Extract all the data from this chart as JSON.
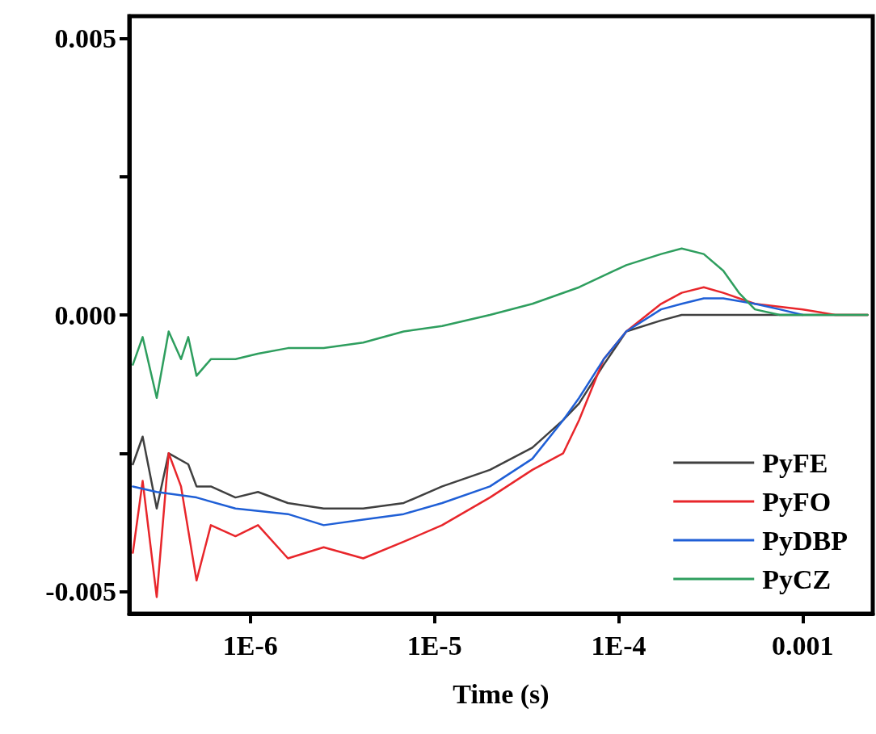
{
  "chart_data": {
    "type": "line",
    "xlabel": "Time (s)",
    "log": "x",
    "grid": false,
    "legend": "bottom right",
    "marker": "none",
    "line_style": "solid",
    "xlim": [
      2.2e-07,
      0.0024
    ],
    "xticks": [
      {
        "value": 1e-06,
        "label": "1E-6"
      },
      {
        "value": 1e-05,
        "label": "1E-5"
      },
      {
        "value": 0.0001,
        "label": "1E-4"
      },
      0.001
    ],
    "ylim": [
      -0.0054,
      0.0054
    ],
    "yticks": [
      {
        "value": -0.005,
        "label": "-0.005"
      },
      {
        "value": -0.0025,
        "label": null
      },
      {
        "value": 0,
        "label": "0.000"
      },
      {
        "value": 0.0025,
        "label": null
      },
      0.005
    ],
    "series": [
      {
        "name": "PyFE",
        "color": "#404040",
        "x": [
          2.3e-07,
          2.6e-07,
          3.1e-07,
          3.6e-07,
          4.6e-07,
          5.1e-07,
          6.1e-07,
          8.3e-07,
          1.1e-06,
          1.6e-06,
          2.5e-06,
          4.1e-06,
          6.8e-06,
          1.1e-05,
          2e-05,
          3.4e-05,
          5e-05,
          6.1e-05,
          8.3e-05,
          0.00011,
          0.00017,
          0.00022,
          0.00029,
          0.00037,
          0.00055,
          0.001,
          0.00225
        ],
        "values": [
          -0.0027,
          -0.0022,
          -0.0035,
          -0.0025,
          -0.0027,
          -0.0031,
          -0.0031,
          -0.0033,
          -0.0032,
          -0.0034,
          -0.0035,
          -0.0035,
          -0.0034,
          -0.0031,
          -0.0028,
          -0.0024,
          -0.0019,
          -0.0016,
          -0.0009,
          -0.0003,
          -0.0001,
          0.0,
          0.0,
          0.0,
          0.0,
          0.0,
          0.0
        ]
      },
      {
        "name": "PyFO",
        "color": "#e8262b",
        "x": [
          2.3e-07,
          2.6e-07,
          3.1e-07,
          3.6e-07,
          4.2e-07,
          5.1e-07,
          6.1e-07,
          8.3e-07,
          1.1e-06,
          1.6e-06,
          2.5e-06,
          4.1e-06,
          6.8e-06,
          1.1e-05,
          2e-05,
          3.4e-05,
          5e-05,
          6.1e-05,
          8.3e-05,
          0.00011,
          0.00017,
          0.00022,
          0.00029,
          0.00037,
          0.00055,
          0.001,
          0.0015,
          0.00225
        ],
        "values": [
          -0.0043,
          -0.003,
          -0.0051,
          -0.0025,
          -0.0031,
          -0.0048,
          -0.0038,
          -0.004,
          -0.0038,
          -0.0044,
          -0.0042,
          -0.0044,
          -0.0041,
          -0.0038,
          -0.0033,
          -0.0028,
          -0.0025,
          -0.0019,
          -0.0008,
          -0.0003,
          0.0002,
          0.0004,
          0.0005,
          0.0004,
          0.0002,
          0.0001,
          0.0,
          0.0
        ]
      },
      {
        "name": "PyDBP",
        "color": "#1f5fd6",
        "x": [
          2.3e-07,
          3.1e-07,
          5.1e-07,
          8.3e-07,
          1.6e-06,
          2.5e-06,
          4.1e-06,
          6.8e-06,
          1.1e-05,
          2e-05,
          3.4e-05,
          5e-05,
          6.1e-05,
          8.3e-05,
          0.00011,
          0.00017,
          0.00022,
          0.00029,
          0.00037,
          0.00055,
          0.00075,
          0.001
        ],
        "values": [
          -0.0031,
          -0.0032,
          -0.0033,
          -0.0035,
          -0.0036,
          -0.0038,
          -0.0037,
          -0.0036,
          -0.0034,
          -0.0031,
          -0.0026,
          -0.0019,
          -0.0015,
          -0.0008,
          -0.0003,
          0.0001,
          0.0002,
          0.0003,
          0.0003,
          0.0002,
          0.0001,
          0.0
        ]
      },
      {
        "name": "PyCZ",
        "color": "#2e9e5e",
        "x": [
          2.3e-07,
          2.6e-07,
          3.1e-07,
          3.6e-07,
          4.2e-07,
          4.6e-07,
          5.1e-07,
          6.1e-07,
          8.3e-07,
          1.1e-06,
          1.6e-06,
          2.5e-06,
          4.1e-06,
          6.8e-06,
          1.1e-05,
          2e-05,
          3.4e-05,
          6.1e-05,
          0.00011,
          0.00017,
          0.00022,
          0.00029,
          0.00037,
          0.00045,
          0.00055,
          0.00075,
          0.001,
          0.0015,
          0.00225
        ],
        "values": [
          -0.0009,
          -0.0004,
          -0.0015,
          -0.0003,
          -0.0008,
          -0.0004,
          -0.0011,
          -0.0008,
          -0.0008,
          -0.0007,
          -0.0006,
          -0.0006,
          -0.0005,
          -0.0003,
          -0.0002,
          0.0,
          0.0002,
          0.0005,
          0.0009,
          0.0011,
          0.0012,
          0.0011,
          0.0008,
          0.0004,
          0.0001,
          0.0,
          0.0,
          0.0,
          0.0
        ]
      }
    ]
  }
}
